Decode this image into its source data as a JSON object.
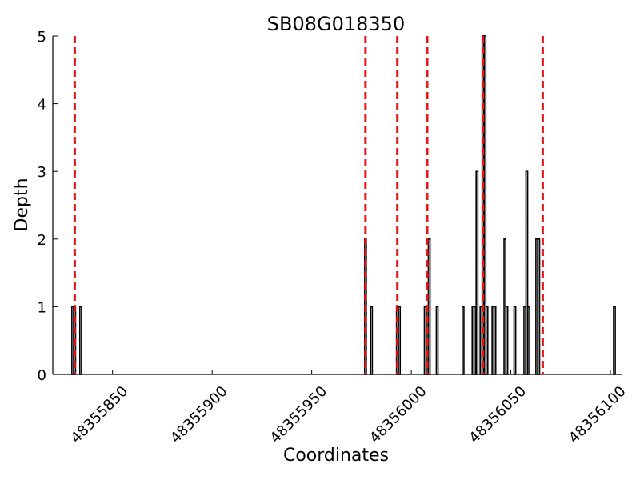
{
  "chart_data": {
    "type": "bar",
    "title": "SB08G018350",
    "xlabel": "Coordinates",
    "ylabel": "Depth",
    "xlim": [
      48355820,
      48356106
    ],
    "ylim": [
      0,
      5
    ],
    "x_ticks": [
      48355850,
      48355900,
      48355950,
      48356000,
      48356050,
      48356100
    ],
    "y_ticks": [
      0,
      1,
      2,
      3,
      4,
      5
    ],
    "grid": false,
    "bars": [
      {
        "x": 48355830,
        "y": 1
      },
      {
        "x": 48355831,
        "y": 1
      },
      {
        "x": 48355834,
        "y": 1
      },
      {
        "x": 48355977,
        "y": 2
      },
      {
        "x": 48355980,
        "y": 1
      },
      {
        "x": 48355993,
        "y": 1
      },
      {
        "x": 48355994,
        "y": 1
      },
      {
        "x": 48356007,
        "y": 1
      },
      {
        "x": 48356008,
        "y": 1
      },
      {
        "x": 48356009,
        "y": 2
      },
      {
        "x": 48356013,
        "y": 1
      },
      {
        "x": 48356026,
        "y": 1
      },
      {
        "x": 48356031,
        "y": 1
      },
      {
        "x": 48356032,
        "y": 1
      },
      {
        "x": 48356033,
        "y": 3
      },
      {
        "x": 48356035,
        "y": 1
      },
      {
        "x": 48356036,
        "y": 5
      },
      {
        "x": 48356037,
        "y": 5
      },
      {
        "x": 48356038,
        "y": 1
      },
      {
        "x": 48356041,
        "y": 1
      },
      {
        "x": 48356042,
        "y": 1
      },
      {
        "x": 48356047,
        "y": 2
      },
      {
        "x": 48356048,
        "y": 1
      },
      {
        "x": 48356052,
        "y": 1
      },
      {
        "x": 48356057,
        "y": 1
      },
      {
        "x": 48356058,
        "y": 3
      },
      {
        "x": 48356059,
        "y": 1
      },
      {
        "x": 48356063,
        "y": 2
      },
      {
        "x": 48356064,
        "y": 2
      },
      {
        "x": 48356102,
        "y": 1
      }
    ],
    "vlines": [
      48355831,
      48355977,
      48355993,
      48356008,
      48356036,
      48356066
    ],
    "colors": {
      "bars": "#000000",
      "vlines": "#e8161b",
      "axes": "#000000"
    }
  }
}
